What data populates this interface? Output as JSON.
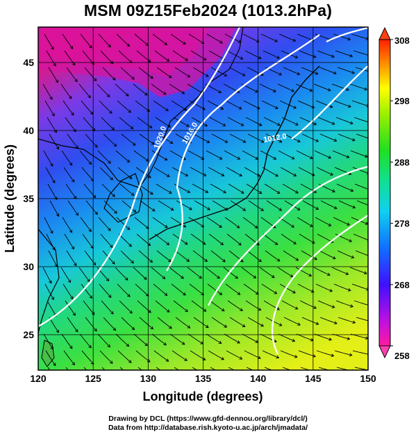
{
  "title": "MSM 09Z15Feb2024 (1013.2hPa)",
  "map": {
    "xlabel": "Longitude (degrees)",
    "ylabel": "Latitude  (degrees)",
    "lon_range": [
      120,
      150
    ],
    "lat_range": [
      22.4,
      47.6
    ],
    "lon_ticks": [
      "120",
      "125",
      "130",
      "135",
      "140",
      "145",
      "150"
    ],
    "lat_ticks": [
      "25",
      "30",
      "35",
      "40",
      "45"
    ],
    "lon_tick_values": [
      120,
      125,
      130,
      135,
      140,
      145,
      150
    ],
    "lat_tick_values": [
      25,
      30,
      35,
      40,
      45
    ],
    "grid": true,
    "field": "potential temperature with streamlines",
    "contour_labels": [
      "1020.0",
      "1016.0",
      "1012.0"
    ]
  },
  "colorbar": {
    "min": 258,
    "max": 308,
    "tick_labels": [
      "308",
      "298",
      "288",
      "278",
      "268",
      "258"
    ],
    "tick_values": [
      308,
      298,
      288,
      278,
      268,
      258
    ],
    "colors": [
      "#ff0080",
      "#c000e0",
      "#4000ff",
      "#0070ff",
      "#00d0ff",
      "#00e080",
      "#20e020",
      "#a0f000",
      "#ffff00",
      "#ff8000",
      "#ff2000"
    ]
  },
  "credits": {
    "line1": "Drawing by DCL (https://www.gfd-dennou.org/library/dcl/)",
    "line2": "Data from http://database.rish.kyoto-u.ac.jp/arch/jmadata/"
  }
}
